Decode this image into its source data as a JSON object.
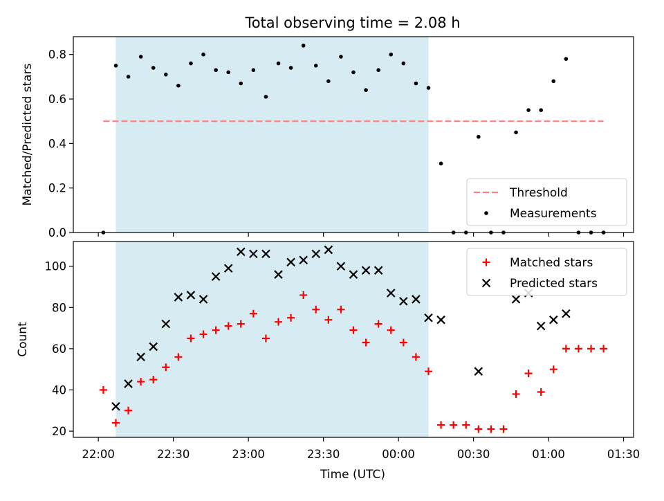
{
  "chart_data": {
    "type": "scatter",
    "title": "Total observing time = 2.08 h",
    "xlabel": "Time (UTC)",
    "x_ticks": [
      "22:00",
      "22:30",
      "23:00",
      "23:30",
      "00:00",
      "00:30",
      "01:00",
      "01:30"
    ],
    "x_tick_minutes": [
      0,
      30,
      60,
      90,
      120,
      150,
      180,
      210
    ],
    "xlim_minutes_after_2200": [
      -10,
      214
    ],
    "shaded_interval_minutes_after_2200": [
      7,
      132
    ],
    "shading_color": "#add8e6",
    "times": [
      "22:02",
      "22:07",
      "22:12",
      "22:17",
      "22:22",
      "22:27",
      "22:32",
      "22:37",
      "22:42",
      "22:47",
      "22:52",
      "22:57",
      "23:02",
      "23:07",
      "23:12",
      "23:17",
      "23:22",
      "23:27",
      "23:32",
      "23:37",
      "23:42",
      "23:47",
      "23:52",
      "23:57",
      "00:02",
      "00:07",
      "00:12",
      "00:17",
      "00:22",
      "00:27",
      "00:32",
      "00:37",
      "00:42",
      "00:47",
      "00:52",
      "00:57",
      "01:02",
      "01:07",
      "01:12",
      "01:17",
      "01:22"
    ],
    "panels": [
      {
        "ylabel": "Matched/Predicted stars",
        "ylim": [
          0,
          0.88
        ],
        "y_ticks": [
          "0.0",
          "0.2",
          "0.4",
          "0.6",
          "0.8"
        ],
        "y_tick_values": [
          0,
          0.2,
          0.4,
          0.6,
          0.8
        ],
        "threshold": {
          "name": "Threshold",
          "value": 0.5,
          "color": "#ff7f7f",
          "x_range": [
            "22:02",
            "01:22"
          ]
        },
        "series": [
          {
            "name": "Measurements",
            "color": "#000000",
            "marker": "dot",
            "values": [
              0.0,
              0.75,
              0.7,
              0.79,
              0.74,
              0.71,
              0.66,
              0.76,
              0.8,
              0.73,
              0.72,
              0.67,
              0.73,
              0.61,
              0.76,
              0.74,
              0.84,
              0.75,
              0.68,
              0.79,
              0.72,
              0.64,
              0.73,
              0.8,
              0.76,
              0.67,
              0.65,
              0.31,
              0.0,
              0.0,
              0.43,
              0.0,
              0.0,
              0.45,
              0.55,
              0.55,
              0.68,
              0.78,
              0.0,
              0.0,
              0.0
            ]
          }
        ],
        "legend": [
          "Threshold",
          "Measurements"
        ],
        "legend_position": "lower right"
      },
      {
        "ylabel": "Count",
        "ylim": [
          17,
          112
        ],
        "y_ticks": [
          "20",
          "40",
          "60",
          "80",
          "100"
        ],
        "y_tick_values": [
          20,
          40,
          60,
          80,
          100
        ],
        "series": [
          {
            "name": "Matched stars",
            "color": "#ff0000",
            "marker": "plus",
            "values": [
              40,
              24,
              30,
              44,
              45,
              51,
              56,
              65,
              67,
              69,
              71,
              72,
              77,
              65,
              73,
              75,
              86,
              79,
              74,
              79,
              69,
              63,
              72,
              69,
              63,
              56,
              49,
              23,
              23,
              23,
              21,
              21,
              21,
              38,
              48,
              39,
              50,
              60,
              60,
              60,
              60
            ]
          },
          {
            "name": "Predicted stars",
            "color": "#000000",
            "marker": "x",
            "values": [
              null,
              32,
              43,
              56,
              61,
              72,
              85,
              86,
              84,
              95,
              99,
              107,
              106,
              106,
              96,
              102,
              103,
              106,
              108,
              100,
              96,
              98,
              98,
              87,
              83,
              84,
              75,
              74,
              null,
              null,
              49,
              null,
              null,
              84,
              87,
              71,
              74,
              77,
              null,
              null,
              null
            ]
          }
        ],
        "legend": [
          "Matched stars",
          "Predicted stars"
        ],
        "legend_position": "upper right"
      }
    ]
  }
}
